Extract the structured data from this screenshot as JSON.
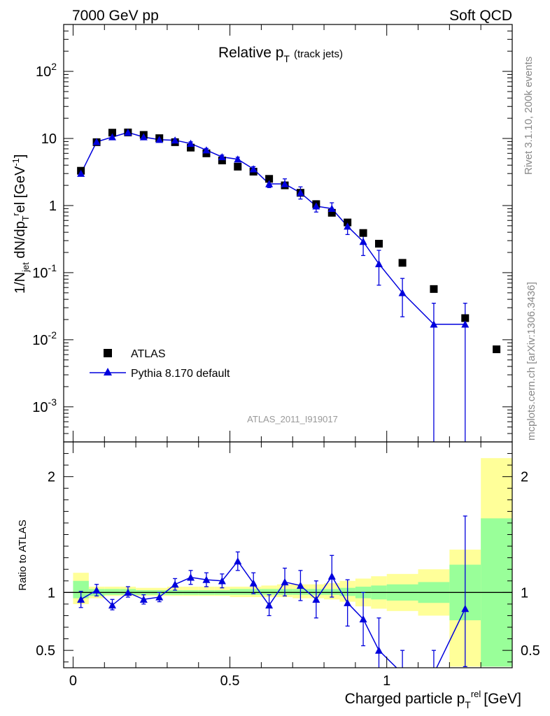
{
  "header": {
    "left": "7000 GeV pp",
    "right": "Soft QCD"
  },
  "side": {
    "rivet": "Rivet 3.1.10,  200k events",
    "mcplots": "mcplots.cern.ch [arXiv:1306.3436]"
  },
  "colors": {
    "mc": "#0000dd",
    "band_inner": "#99ff99",
    "band_outer": "#ffff99",
    "data": "#000000"
  },
  "chart_data": [
    {
      "type": "scatter",
      "title": "Relative p_T (track jets)",
      "title_main": "Relative p",
      "title_sub": "T",
      "title_note": "(track jets)",
      "watermark": "ATLAS_2011_I919017",
      "ylabel": "1/N_jet dN/dp_T^rel [GeV^-1]",
      "yscale": "log",
      "xlim": [
        -0.03,
        1.4
      ],
      "ylim": [
        0.0003,
        500
      ],
      "y_ticks": [
        "10^-3",
        "10^-2",
        "10^-1",
        "1",
        "10",
        "10^2"
      ],
      "legend": {
        "placement": "lower-left",
        "data": "ATLAS",
        "mc": "Pythia 8.170 default"
      },
      "series": [
        {
          "name": "ATLAS",
          "marker": "square",
          "x": [
            0.025,
            0.075,
            0.125,
            0.175,
            0.225,
            0.275,
            0.325,
            0.375,
            0.425,
            0.475,
            0.525,
            0.575,
            0.625,
            0.675,
            0.725,
            0.775,
            0.825,
            0.875,
            0.925,
            0.975,
            1.05,
            1.15,
            1.25,
            1.35
          ],
          "y": [
            3.3,
            8.8,
            12.2,
            12.3,
            11.3,
            10.1,
            8.8,
            7.3,
            6.0,
            4.7,
            3.8,
            3.2,
            2.5,
            2.0,
            1.55,
            1.05,
            0.78,
            0.56,
            0.39,
            0.27,
            0.14,
            0.057,
            0.021,
            0.0072
          ]
        },
        {
          "name": "Pythia 8.170 default",
          "marker": "triangle",
          "x": [
            0.025,
            0.075,
            0.125,
            0.175,
            0.225,
            0.275,
            0.325,
            0.375,
            0.425,
            0.475,
            0.525,
            0.575,
            0.625,
            0.675,
            0.725,
            0.775,
            0.825,
            0.875,
            0.925,
            0.975,
            1.05,
            1.15,
            1.25
          ],
          "y": [
            3.0,
            8.9,
            10.5,
            12.3,
            10.5,
            9.6,
            9.4,
            8.4,
            6.7,
            5.3,
            4.9,
            3.5,
            2.1,
            2.1,
            1.55,
            0.98,
            0.9,
            0.49,
            0.29,
            0.135,
            0.05,
            0.017,
            0.017
          ],
          "yerr_low": [
            0.25,
            0.4,
            0.5,
            0.5,
            0.5,
            0.5,
            0.5,
            0.5,
            0.4,
            0.35,
            0.35,
            0.3,
            0.25,
            0.3,
            0.3,
            0.18,
            0.18,
            0.12,
            0.11,
            0.07,
            0.028,
            0.0169,
            0.0169
          ],
          "yerr_high": [
            0.25,
            0.4,
            0.5,
            0.5,
            0.5,
            0.5,
            0.5,
            0.5,
            0.4,
            0.35,
            0.35,
            0.3,
            0.25,
            0.4,
            0.35,
            0.2,
            0.2,
            0.13,
            0.12,
            0.08,
            0.032,
            0.018,
            0.018
          ]
        }
      ]
    },
    {
      "type": "scatter",
      "ylabel": "Ratio to ATLAS",
      "xlabel": "Charged particle p_T^rel [GeV]",
      "xlabel_main": "Charged particle p",
      "xlabel_sub": "T",
      "xlabel_sup": "rel",
      "xlabel_unit": "[GeV]",
      "xlim": [
        -0.03,
        1.4
      ],
      "ylim": [
        0.35,
        2.3
      ],
      "x_ticks": [
        "0",
        "0.5",
        "1"
      ],
      "y_ticks": [
        "0.5",
        "1",
        "2"
      ],
      "reference_line": 1,
      "bands": {
        "edges": [
          0,
          0.05,
          0.1,
          0.15,
          0.2,
          0.25,
          0.3,
          0.35,
          0.4,
          0.45,
          0.5,
          0.55,
          0.6,
          0.65,
          0.7,
          0.75,
          0.8,
          0.85,
          0.9,
          0.95,
          1.0,
          1.1,
          1.2,
          1.3,
          1.4
        ],
        "inner_low": [
          0.95,
          0.97,
          0.98,
          0.98,
          0.98,
          0.98,
          0.98,
          0.98,
          0.98,
          0.98,
          0.98,
          0.98,
          0.98,
          0.98,
          0.98,
          0.98,
          0.98,
          0.97,
          0.95,
          0.94,
          0.93,
          0.91,
          0.76,
          0.36
        ],
        "inner_high": [
          1.1,
          1.03,
          1.03,
          1.03,
          1.02,
          1.02,
          1.02,
          1.02,
          1.02,
          1.02,
          1.03,
          1.03,
          1.03,
          1.03,
          1.03,
          1.03,
          1.03,
          1.04,
          1.05,
          1.06,
          1.07,
          1.09,
          1.24,
          1.64
        ],
        "outer_low": [
          0.9,
          0.95,
          0.97,
          0.97,
          0.97,
          0.97,
          0.97,
          0.97,
          0.97,
          0.97,
          0.96,
          0.96,
          0.96,
          0.96,
          0.95,
          0.95,
          0.94,
          0.92,
          0.88,
          0.86,
          0.84,
          0.8,
          0.36,
          0.36
        ],
        "outer_high": [
          1.17,
          1.05,
          1.05,
          1.05,
          1.04,
          1.04,
          1.05,
          1.05,
          1.05,
          1.05,
          1.05,
          1.05,
          1.06,
          1.07,
          1.07,
          1.07,
          1.08,
          1.1,
          1.12,
          1.14,
          1.16,
          1.2,
          1.37,
          2.16
        ]
      },
      "series": [
        {
          "name": "Pythia 8.170 default",
          "marker": "triangle",
          "x": [
            0.025,
            0.075,
            0.125,
            0.175,
            0.225,
            0.275,
            0.325,
            0.375,
            0.425,
            0.475,
            0.525,
            0.575,
            0.625,
            0.675,
            0.725,
            0.775,
            0.825,
            0.875,
            0.925,
            0.975,
            1.05,
            1.15,
            1.25
          ],
          "y": [
            0.94,
            1.02,
            0.89,
            1.0,
            0.94,
            0.96,
            1.07,
            1.13,
            1.11,
            1.1,
            1.27,
            1.08,
            0.89,
            1.09,
            1.06,
            0.94,
            1.14,
            0.91,
            0.77,
            0.5,
            0.3,
            0.3,
            0.86
          ],
          "yerr_low": [
            0.07,
            0.05,
            0.04,
            0.04,
            0.04,
            0.04,
            0.05,
            0.06,
            0.06,
            0.06,
            0.08,
            0.09,
            0.09,
            0.12,
            0.13,
            0.16,
            0.18,
            0.2,
            0.23,
            0.25,
            0.2,
            0.2,
            0.5
          ],
          "yerr_high": [
            0.07,
            0.05,
            0.05,
            0.05,
            0.04,
            0.04,
            0.05,
            0.06,
            0.06,
            0.06,
            0.08,
            0.09,
            0.09,
            0.12,
            0.13,
            0.16,
            0.18,
            0.2,
            0.23,
            0.28,
            0.2,
            0.2,
            0.8
          ]
        }
      ]
    }
  ]
}
